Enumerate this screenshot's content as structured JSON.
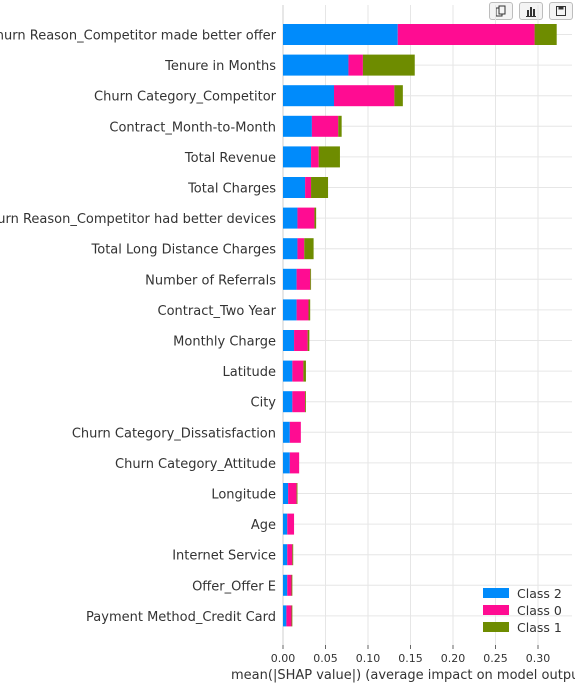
{
  "toolbar": {
    "buttons": [
      {
        "icon": "copy-icon"
      },
      {
        "icon": "bar-chart-icon"
      },
      {
        "icon": "save-icon"
      }
    ]
  },
  "chart_data": {
    "type": "bar",
    "orientation": "horizontal",
    "stacked": true,
    "title": "",
    "xlabel": "mean(|SHAP value|) (average impact on model output mag",
    "ylabel": "",
    "xlim": [
      0,
      0.34
    ],
    "xticks": [
      "0.00",
      "0.05",
      "0.10",
      "0.15",
      "0.20",
      "0.25",
      "0.30"
    ],
    "grid": true,
    "legend_position": "bottom-right",
    "categories": [
      "Churn Reason_Competitor made better offer",
      "Tenure in Months",
      "Churn Category_Competitor",
      "Contract_Month-to-Month",
      "Total Revenue",
      "Total Charges",
      "Churn Reason_Competitor had better devices",
      "Total Long Distance Charges",
      "Number of Referrals",
      "Contract_Two Year",
      "Monthly Charge",
      "Latitude",
      "City",
      "Churn Category_Dissatisfaction",
      "Churn Category_Attitude",
      "Longitude",
      "Age",
      "Internet Service",
      "Offer_Offer E",
      "Payment Method_Credit Card"
    ],
    "series": [
      {
        "name": "Class 2",
        "color": "#008bfb",
        "values": [
          0.135,
          0.077,
          0.06,
          0.034,
          0.033,
          0.026,
          0.017,
          0.017,
          0.016,
          0.016,
          0.013,
          0.011,
          0.011,
          0.008,
          0.008,
          0.006,
          0.005,
          0.005,
          0.005,
          0.004
        ]
      },
      {
        "name": "Class 0",
        "color": "#ff0c92",
        "values": [
          0.161,
          0.017,
          0.071,
          0.031,
          0.009,
          0.007,
          0.02,
          0.008,
          0.016,
          0.014,
          0.016,
          0.013,
          0.015,
          0.013,
          0.011,
          0.01,
          0.008,
          0.006,
          0.005,
          0.006
        ]
      },
      {
        "name": "Class 1",
        "color": "#6e8c00",
        "values": [
          0.026,
          0.061,
          0.01,
          0.004,
          0.025,
          0.02,
          0.002,
          0.011,
          0.001,
          0.002,
          0.002,
          0.003,
          0.001,
          0.0,
          0.0,
          0.001,
          0.0,
          0.001,
          0.001,
          0.001
        ]
      }
    ]
  }
}
